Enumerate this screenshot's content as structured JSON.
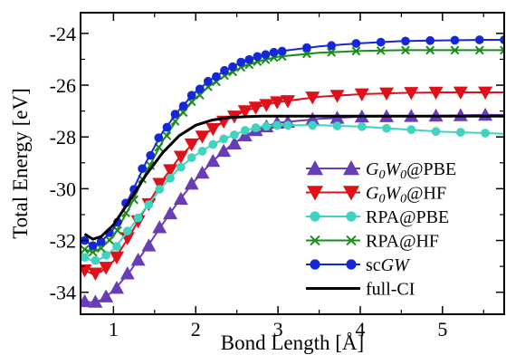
{
  "chart_data": {
    "type": "line",
    "title": "",
    "xlabel": "Bond Length [Å]",
    "ylabel": "Total Energy [eV]",
    "xlim": [
      0.6,
      5.75
    ],
    "ylim": [
      -34.85,
      -23.2
    ],
    "xticks": [
      1,
      2,
      3,
      4,
      5
    ],
    "xtick_labels": [
      "1",
      "2",
      "3",
      "4",
      "5"
    ],
    "yticks": [
      -34,
      -32,
      -30,
      -28,
      -26,
      -24
    ],
    "ytick_labels": [
      "-34",
      "-32",
      "-30",
      "-28",
      "-26",
      "-24"
    ],
    "grid": false,
    "legend_position": "lower-right",
    "series": [
      {
        "key": "g0w0pbe",
        "name": "G0W0@PBE",
        "color": "#6a3db8",
        "marker": "triangle-up",
        "x": [
          0.65,
          0.75,
          0.85,
          1.0,
          1.2,
          1.4,
          1.6,
          1.8,
          2.0,
          2.2,
          2.4,
          2.6,
          2.8,
          3.0,
          3.5,
          4.0,
          4.5,
          5.0,
          5.5,
          5.75
        ],
        "y": [
          -34.35,
          -34.4,
          -34.3,
          -33.95,
          -33.2,
          -32.3,
          -31.35,
          -30.45,
          -29.65,
          -28.95,
          -28.4,
          -27.95,
          -27.65,
          -27.45,
          -27.3,
          -27.22,
          -27.2,
          -27.18,
          -27.15,
          -27.15
        ]
      },
      {
        "key": "g0w0hf",
        "name": "G0W0@HF",
        "color": "#e0101a",
        "marker": "triangle-down",
        "x": [
          0.65,
          0.75,
          0.85,
          1.0,
          1.2,
          1.4,
          1.6,
          1.8,
          2.0,
          2.2,
          2.4,
          2.6,
          2.8,
          3.0,
          3.5,
          4.0,
          4.5,
          5.0,
          5.5,
          5.75
        ],
        "y": [
          -33.15,
          -33.3,
          -33.2,
          -32.8,
          -31.8,
          -30.7,
          -29.65,
          -28.8,
          -28.15,
          -27.7,
          -27.3,
          -27.0,
          -26.8,
          -26.65,
          -26.45,
          -26.35,
          -26.3,
          -26.28,
          -26.28,
          -26.28
        ]
      },
      {
        "key": "rpapbe",
        "name": "RPA@PBE",
        "color": "#3fd4c0",
        "marker": "circle",
        "x": [
          0.65,
          0.75,
          0.85,
          1.0,
          1.2,
          1.4,
          1.6,
          1.8,
          2.0,
          2.2,
          2.4,
          2.6,
          2.8,
          3.0,
          3.5,
          4.0,
          4.5,
          5.0,
          5.5,
          5.75
        ],
        "y": [
          -32.65,
          -32.8,
          -32.7,
          -32.35,
          -31.55,
          -30.7,
          -29.9,
          -29.2,
          -28.7,
          -28.3,
          -28.0,
          -27.75,
          -27.6,
          -27.55,
          -27.55,
          -27.6,
          -27.7,
          -27.8,
          -27.85,
          -27.88
        ]
      },
      {
        "key": "rpahf",
        "name": "RPA@HF",
        "color": "#1a8c1a",
        "marker": "cross",
        "x": [
          0.65,
          0.75,
          0.85,
          1.0,
          1.2,
          1.4,
          1.6,
          1.8,
          2.0,
          2.2,
          2.4,
          2.6,
          2.8,
          3.0,
          3.5,
          4.0,
          4.5,
          5.0,
          5.5,
          5.75
        ],
        "y": [
          -32.35,
          -32.45,
          -32.3,
          -31.85,
          -30.7,
          -29.35,
          -28.15,
          -27.2,
          -26.5,
          -25.95,
          -25.55,
          -25.25,
          -25.05,
          -24.9,
          -24.75,
          -24.68,
          -24.65,
          -24.65,
          -24.65,
          -24.65
        ]
      },
      {
        "key": "scgw",
        "name": "scGW",
        "color": "#1428d8",
        "marker": "circle",
        "x": [
          0.65,
          0.75,
          0.85,
          1.0,
          1.2,
          1.4,
          1.6,
          1.8,
          2.0,
          2.2,
          2.4,
          2.6,
          2.8,
          3.0,
          3.5,
          4.0,
          4.5,
          5.0,
          5.5,
          5.75
        ],
        "y": [
          -32.0,
          -32.2,
          -32.05,
          -31.55,
          -30.3,
          -28.95,
          -27.8,
          -26.95,
          -26.25,
          -25.75,
          -25.35,
          -25.05,
          -24.85,
          -24.7,
          -24.5,
          -24.38,
          -24.3,
          -24.27,
          -24.25,
          -24.25
        ]
      },
      {
        "key": "fullci",
        "name": "full-CI",
        "color": "#000000",
        "marker": "none",
        "x": [
          0.65,
          0.75,
          0.85,
          1.0,
          1.2,
          1.4,
          1.6,
          1.8,
          2.0,
          2.2,
          2.4,
          2.6,
          2.8,
          3.0,
          3.5,
          4.0,
          4.5,
          5.0,
          5.5,
          5.75
        ],
        "y": [
          -31.75,
          -31.95,
          -31.85,
          -31.4,
          -30.45,
          -29.45,
          -28.6,
          -27.95,
          -27.55,
          -27.35,
          -27.25,
          -27.22,
          -27.2,
          -27.2,
          -27.2,
          -27.2,
          -27.2,
          -27.2,
          -27.2,
          -27.2
        ]
      }
    ]
  }
}
